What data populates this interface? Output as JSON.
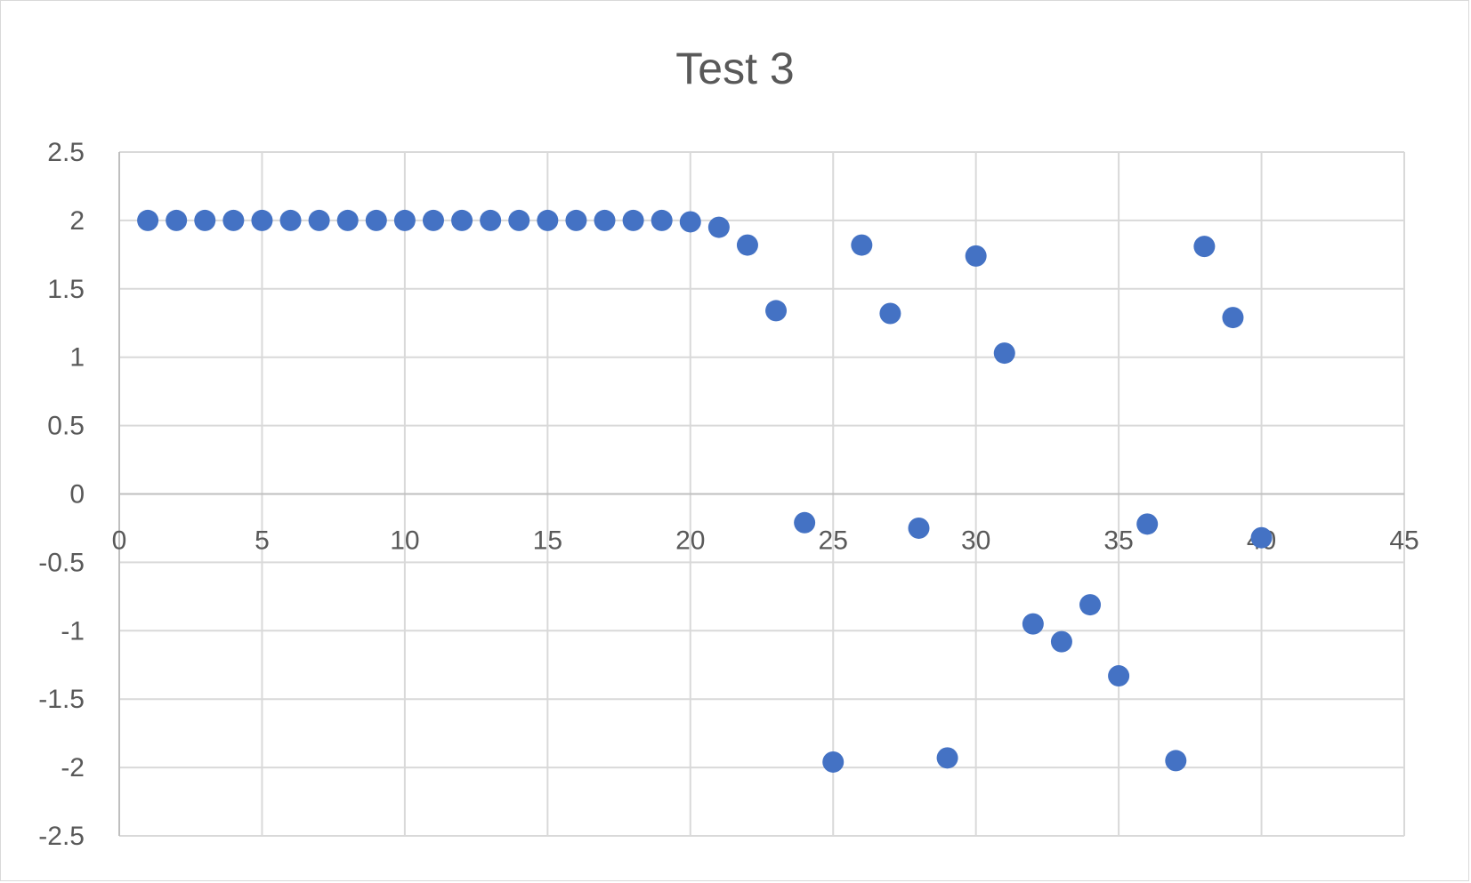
{
  "chart_data": {
    "type": "scatter",
    "title": "Test 3",
    "xlabel": "",
    "ylabel": "",
    "xlim": [
      0,
      45
    ],
    "ylim": [
      -2.5,
      2.5
    ],
    "x_ticks": [
      "0",
      "5",
      "10",
      "15",
      "20",
      "25",
      "30",
      "35",
      "40",
      "45"
    ],
    "y_ticks": [
      "2.5",
      "2",
      "1.5",
      "1",
      "0.5",
      "0",
      "-0.5",
      "-1",
      "-1.5",
      "-2",
      "-2.5"
    ],
    "grid": true,
    "legend": "none",
    "marker_color": "#4472C4",
    "series": [
      {
        "x": [
          1,
          2,
          3,
          4,
          5,
          6,
          7,
          8,
          9,
          10,
          11,
          12,
          13,
          14,
          15,
          16,
          17,
          18,
          19,
          20,
          21,
          22,
          23,
          24,
          25,
          26,
          27,
          28,
          29,
          30,
          31,
          32,
          33,
          34,
          35,
          36,
          37,
          38,
          39,
          40
        ],
        "y": [
          2,
          2,
          2,
          2,
          2,
          2,
          2,
          2,
          2,
          2,
          2,
          2,
          2,
          2,
          2,
          2,
          2,
          2,
          2,
          1.99,
          1.95,
          1.82,
          1.34,
          -0.21,
          -1.96,
          1.82,
          1.32,
          -0.25,
          -1.93,
          1.74,
          1.03,
          -0.95,
          -1.08,
          -0.81,
          -1.33,
          -0.22,
          -1.95,
          1.81,
          1.29,
          -0.32
        ]
      }
    ]
  }
}
